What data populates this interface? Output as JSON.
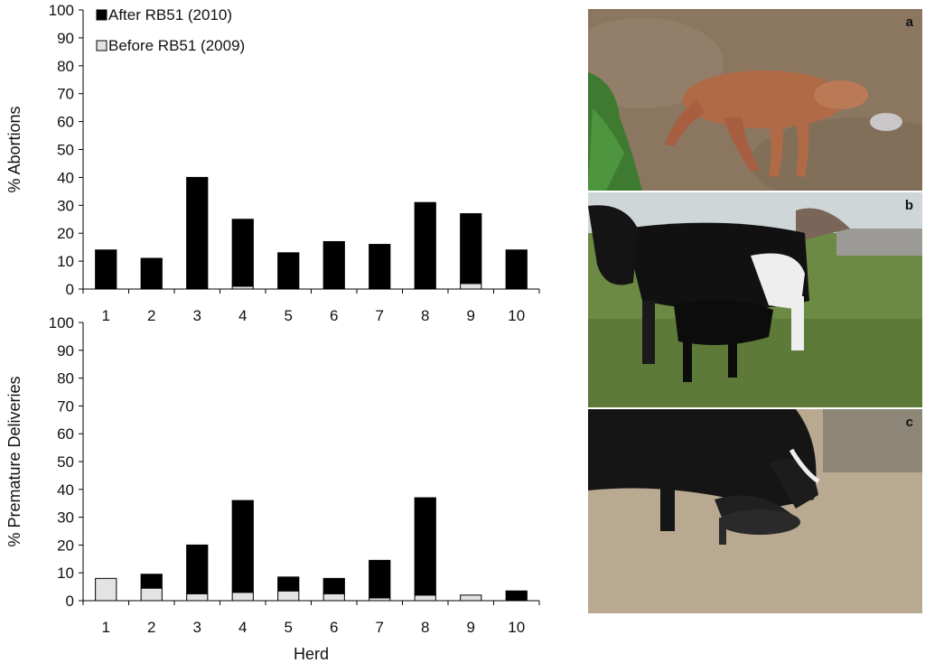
{
  "chart_data": [
    {
      "type": "bar",
      "stacked": true,
      "categories": [
        "1",
        "2",
        "3",
        "4",
        "5",
        "6",
        "7",
        "8",
        "9",
        "10"
      ],
      "ylabel": "% Abortions",
      "xlabel": "",
      "ylim": [
        0,
        100
      ],
      "yticks": [
        0,
        10,
        20,
        30,
        40,
        50,
        60,
        70,
        80,
        90,
        100
      ],
      "legend_position": "top-left",
      "series": [
        {
          "name": "After RB51 (2010)",
          "color": "#000000",
          "values": [
            14,
            11,
            40,
            24,
            13,
            17,
            16,
            31,
            25,
            14
          ]
        },
        {
          "name": "Before RB51 (2009)",
          "color": "#e3e3e3",
          "values": [
            0,
            0,
            0,
            1,
            0,
            0,
            0,
            0,
            2,
            0
          ]
        }
      ]
    },
    {
      "type": "bar",
      "stacked": true,
      "categories": [
        "1",
        "2",
        "3",
        "4",
        "5",
        "6",
        "7",
        "8",
        "9",
        "10"
      ],
      "ylabel": "% Premature Deliveries",
      "xlabel": "Herd",
      "ylim": [
        0,
        100
      ],
      "yticks": [
        0,
        10,
        20,
        30,
        40,
        50,
        60,
        70,
        80,
        90,
        100
      ],
      "series": [
        {
          "name": "After RB51 (2010)",
          "color": "#000000",
          "values": [
            0,
            5,
            17.5,
            33,
            5,
            5.5,
            13.5,
            35,
            0,
            3.5
          ]
        },
        {
          "name": "Before RB51 (2009)",
          "color": "#e3e3e3",
          "values": [
            8,
            4.5,
            2.5,
            3,
            3.5,
            2.5,
            1,
            2,
            2,
            0
          ]
        }
      ]
    }
  ],
  "photos": [
    {
      "label": "a",
      "icon": "stillborn-calf-photo"
    },
    {
      "label": "b",
      "icon": "cow-with-calf-photo"
    },
    {
      "label": "c",
      "icon": "cow-licking-calf-photo"
    }
  ]
}
